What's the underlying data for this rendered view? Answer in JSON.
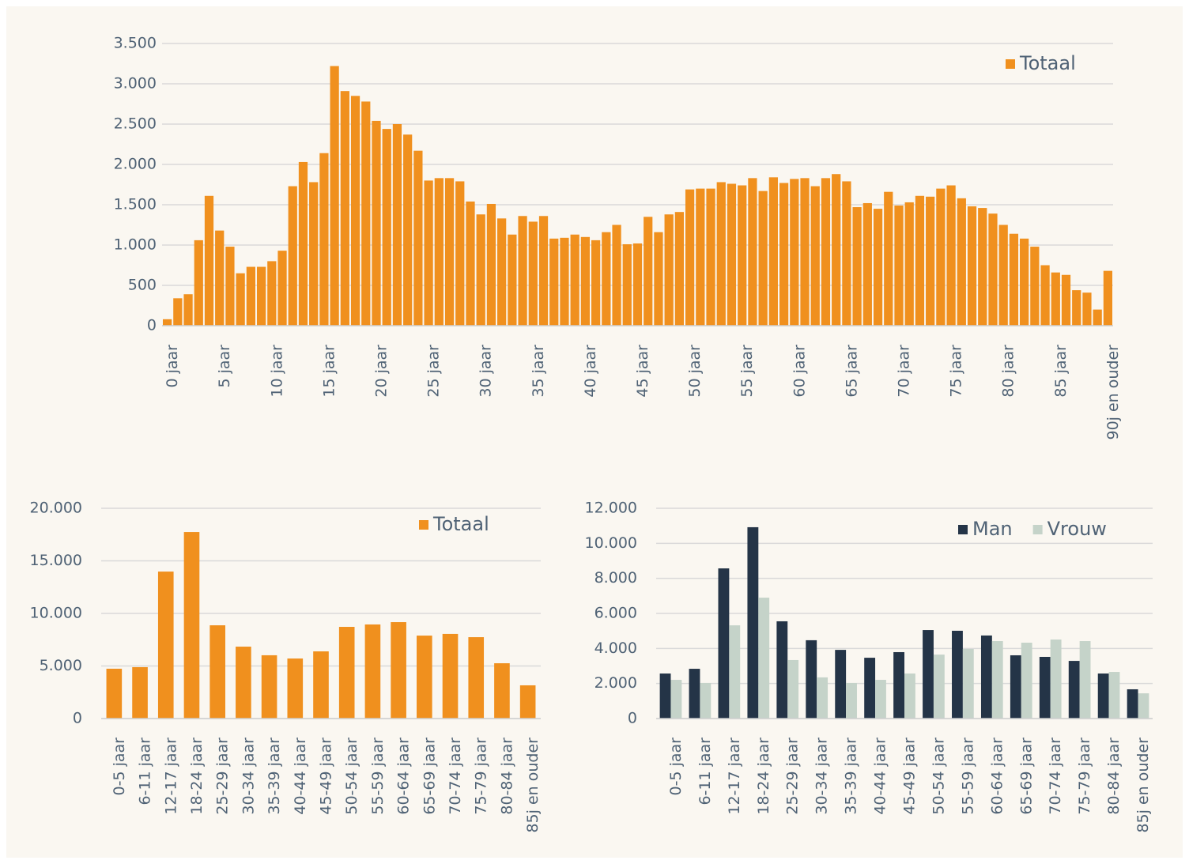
{
  "chart_data": [
    {
      "type": "bar",
      "categories": [
        "0 jaar",
        null,
        null,
        null,
        null,
        "5 jaar",
        null,
        null,
        null,
        null,
        "10 jaar",
        null,
        null,
        null,
        null,
        "15 jaar",
        null,
        null,
        null,
        null,
        "20 jaar",
        null,
        null,
        null,
        null,
        "25 jaar",
        null,
        null,
        null,
        null,
        "30 jaar",
        null,
        null,
        null,
        null,
        "35 jaar",
        null,
        null,
        null,
        null,
        "40 jaar",
        null,
        null,
        null,
        null,
        "45 jaar",
        null,
        null,
        null,
        null,
        "50 jaar",
        null,
        null,
        null,
        null,
        "55 jaar",
        null,
        null,
        null,
        null,
        "60 jaar",
        null,
        null,
        null,
        null,
        "65 jaar",
        null,
        null,
        null,
        null,
        "70 jaar",
        null,
        null,
        null,
        null,
        "75 jaar",
        null,
        null,
        null,
        null,
        "80 jaar",
        null,
        null,
        null,
        null,
        "85 jaar",
        null,
        null,
        null,
        null,
        "90j en ouder"
      ],
      "series": [
        {
          "name": "Totaal",
          "color": "#f0901e",
          "values": [
            80,
            340,
            390,
            1060,
            1610,
            1180,
            980,
            650,
            730,
            730,
            800,
            930,
            1730,
            2030,
            1780,
            2140,
            3220,
            2910,
            2850,
            2780,
            2540,
            2440,
            2500,
            2370,
            2170,
            1800,
            1830,
            1830,
            1790,
            1540,
            1380,
            1510,
            1330,
            1130,
            1360,
            1290,
            1360,
            1080,
            1090,
            1130,
            1100,
            1060,
            1160,
            1250,
            1010,
            1020,
            1350,
            1160,
            1380,
            1410,
            1690,
            1700,
            1700,
            1780,
            1760,
            1740,
            1830,
            1670,
            1840,
            1770,
            1820,
            1830,
            1730,
            1830,
            1880,
            1790,
            1470,
            1520,
            1450,
            1660,
            1490,
            1530,
            1610,
            1600,
            1700,
            1740,
            1580,
            1480,
            1460,
            1390,
            1250,
            1140,
            1080,
            980,
            750,
            660,
            630,
            440,
            410,
            200,
            680
          ]
        }
      ],
      "ylim": [
        0,
        3500
      ],
      "yticks": [
        0,
        {
          "value": 500,
          "label": "500"
        },
        {
          "value": 1000,
          "label": "1.000"
        },
        {
          "value": 1500,
          "label": "1.500"
        },
        {
          "value": 2000,
          "label": "2.000"
        },
        {
          "value": 2500,
          "label": "2.500"
        },
        {
          "value": 3000,
          "label": "3.000"
        },
        {
          "value": 3500,
          "label": "3.500"
        }
      ],
      "grid": true,
      "legend": "top-right"
    },
    {
      "type": "bar",
      "categories": [
        "0-5 jaar",
        "6-11 jaar",
        "12-17 jaar",
        "18-24 jaar",
        "25-29 jaar",
        "30-34 jaar",
        "35-39 jaar",
        "40-44 jaar",
        "45-49 jaar",
        "50-54 jaar",
        "55-59 jaar",
        "60-64 jaar",
        "65-69 jaar",
        "70-74 jaar",
        "75-79 jaar",
        "80-84 jaar",
        "85j en ouder"
      ],
      "series": [
        {
          "name": "Totaal",
          "color": "#f0901e",
          "values": [
            4740,
            4890,
            13980,
            17740,
            8870,
            6840,
            6020,
            5710,
            6390,
            8720,
            8950,
            9170,
            7890,
            8050,
            7740,
            5260,
            3160
          ]
        }
      ],
      "ylim": [
        0,
        20000
      ],
      "yticks": [
        0,
        {
          "value": 5000,
          "label": "5.000"
        },
        {
          "value": 10000,
          "label": "10.000"
        },
        {
          "value": 15000,
          "label": "15.000"
        },
        {
          "value": 20000,
          "label": "20.000"
        }
      ],
      "grid": true,
      "legend": "top-right"
    },
    {
      "type": "bar",
      "categories": [
        "0-5 jaar",
        "6-11 jaar",
        "12-17 jaar",
        "18-24 jaar",
        "25-29 jaar",
        "30-34 jaar",
        "35-39 jaar",
        "40-44 jaar",
        "45-49 jaar",
        "50-54 jaar",
        "55-59 jaar",
        "60-64 jaar",
        "65-69 jaar",
        "70-74 jaar",
        "75-79 jaar",
        "80-84 jaar",
        "85j en ouder"
      ],
      "series": [
        {
          "name": "Man",
          "color": "#243447",
          "values": [
            2570,
            2840,
            8570,
            10920,
            5550,
            4470,
            3920,
            3470,
            3790,
            5050,
            5010,
            4740,
            3610,
            3520,
            3290,
            2570,
            1670
          ]
        },
        {
          "name": "Vrouw",
          "color": "#c5d3c9",
          "values": [
            2210,
            2030,
            5320,
            6900,
            3340,
            2350,
            2030,
            2210,
            2570,
            3650,
            3970,
            4420,
            4330,
            4510,
            4420,
            2660,
            1440
          ]
        }
      ],
      "ylim": [
        0,
        12000
      ],
      "yticks": [
        0,
        {
          "value": 2000,
          "label": "2.000"
        },
        {
          "value": 4000,
          "label": "4.000"
        },
        {
          "value": 6000,
          "label": "6.000"
        },
        {
          "value": 8000,
          "label": "8.000"
        },
        {
          "value": 10000,
          "label": "10.000"
        },
        {
          "value": 12000,
          "label": "12.000"
        }
      ],
      "grid": true,
      "legend": "top-right"
    }
  ]
}
